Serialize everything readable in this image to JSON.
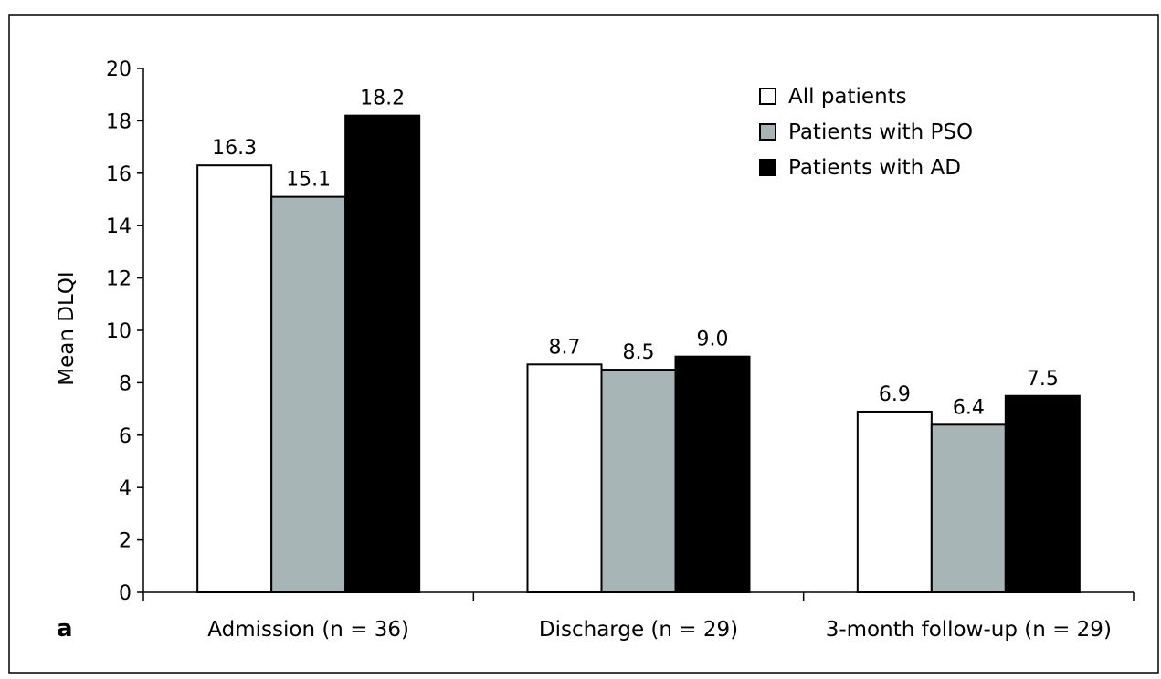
{
  "panel_label": "a",
  "chart_data": {
    "type": "bar",
    "categories": [
      "Admission (n = 36)",
      "Discharge (n = 29)",
      "3-month follow-up (n = 29)"
    ],
    "series": [
      {
        "name": "All patients",
        "values": [
          16.3,
          8.7,
          6.9
        ],
        "labels": [
          "16.3",
          "8.7",
          "6.9"
        ],
        "color": "#ffffff"
      },
      {
        "name": "Patients with PSO",
        "values": [
          15.1,
          8.5,
          6.4
        ],
        "labels": [
          "15.1",
          "8.5",
          "6.4"
        ],
        "color": "#a7b5b7"
      },
      {
        "name": "Patients with AD",
        "values": [
          18.2,
          9.0,
          7.5
        ],
        "labels": [
          "18.2",
          "9.0",
          "7.5"
        ],
        "color": "#000000"
      }
    ],
    "ylabel": "Mean DLQI",
    "xlabel": "",
    "ylim": [
      0,
      20
    ],
    "yticks": [
      0,
      2,
      4,
      6,
      8,
      10,
      12,
      14,
      16,
      18,
      20
    ],
    "grid": false,
    "legend_position": "top-right"
  }
}
